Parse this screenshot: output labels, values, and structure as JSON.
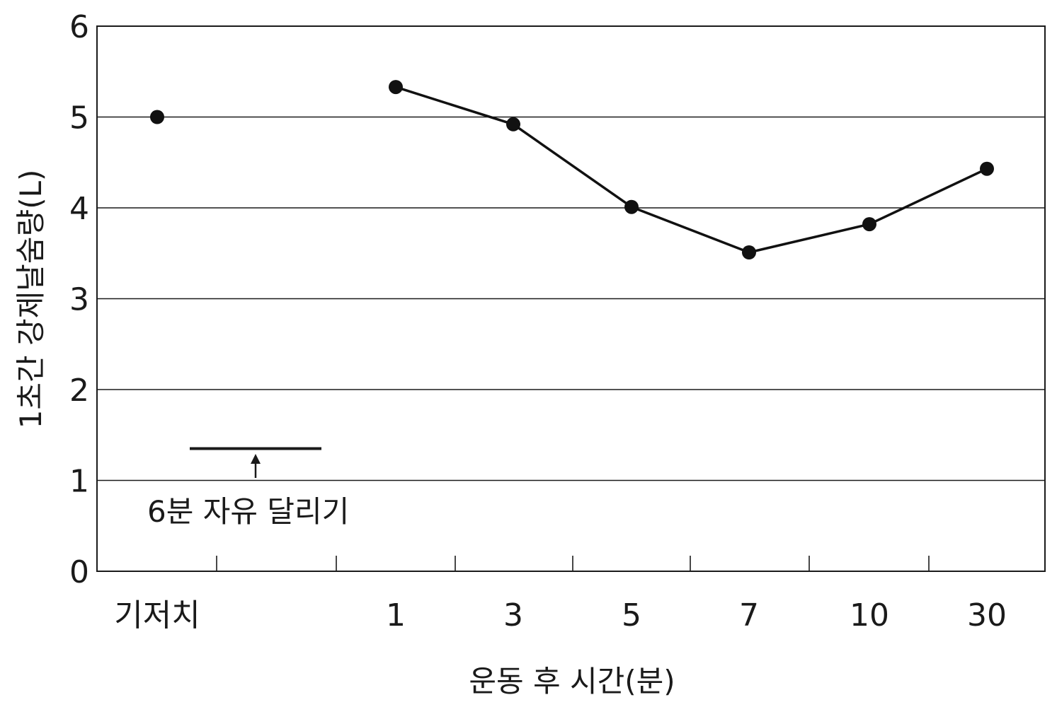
{
  "chart_data": {
    "type": "line",
    "categories": [
      "기저치",
      "1",
      "3",
      "5",
      "7",
      "10",
      "30"
    ],
    "series": [
      {
        "values": [
          5.0,
          5.33,
          4.92,
          4.01,
          3.51,
          3.82,
          4.43
        ]
      }
    ],
    "baseline_connected": false,
    "ylabel": "1초간 강제날숨량(L)",
    "xlabel": "운동 후 시간(분)",
    "ylim": [
      0,
      6
    ],
    "yticks": [
      0,
      1,
      2,
      3,
      4,
      5,
      6
    ],
    "grid": true,
    "annotation": {
      "text": "6분 자유 달리기",
      "y_value": 1.35
    }
  }
}
